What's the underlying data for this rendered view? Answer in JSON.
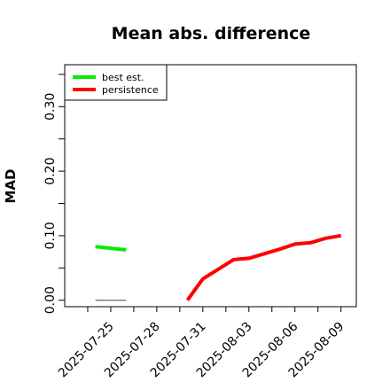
{
  "chart_data": {
    "type": "line",
    "title": "Mean abs. difference",
    "xlabel": "",
    "ylabel": "MAD",
    "ylim": [
      -0.01,
      0.365
    ],
    "yticks": [
      0.0,
      0.1,
      0.2,
      0.3
    ],
    "ytick_labels": [
      "0.00",
      "0.10",
      "0.20",
      "0.30"
    ],
    "xlim": [
      "2025-07-22",
      "2025-08-10"
    ],
    "xticks": [
      "2025-07-25",
      "2025-07-28",
      "2025-07-31",
      "2025-08-03",
      "2025-08-06",
      "2025-08-09"
    ],
    "xtick_labels": [
      "2025-07-25",
      "2025-07-28",
      "2025-07-31",
      "2025-08-03",
      "2025-08-06",
      "2025-08-09"
    ],
    "grid": false,
    "legend": {
      "position": "top-left"
    },
    "series": [
      {
        "name": "best est.",
        "color": "#00ee00",
        "x": [
          "2025-07-24",
          "2025-07-26"
        ],
        "y": [
          0.083,
          0.078
        ]
      },
      {
        "name": "persistence",
        "color": "#ff0000",
        "x": [
          "2025-07-30",
          "2025-07-31",
          "2025-08-01",
          "2025-08-02",
          "2025-08-03",
          "2025-08-04",
          "2025-08-05",
          "2025-08-06",
          "2025-08-07",
          "2025-08-08",
          "2025-08-09"
        ],
        "y": [
          0.0,
          0.033,
          0.048,
          0.063,
          0.065,
          0.072,
          0.079,
          0.087,
          0.089,
          0.096,
          0.1
        ]
      },
      {
        "color": "#808080",
        "x": [
          "2025-07-24",
          "2025-07-26"
        ],
        "y": [
          0.0,
          0.0
        ]
      }
    ]
  }
}
